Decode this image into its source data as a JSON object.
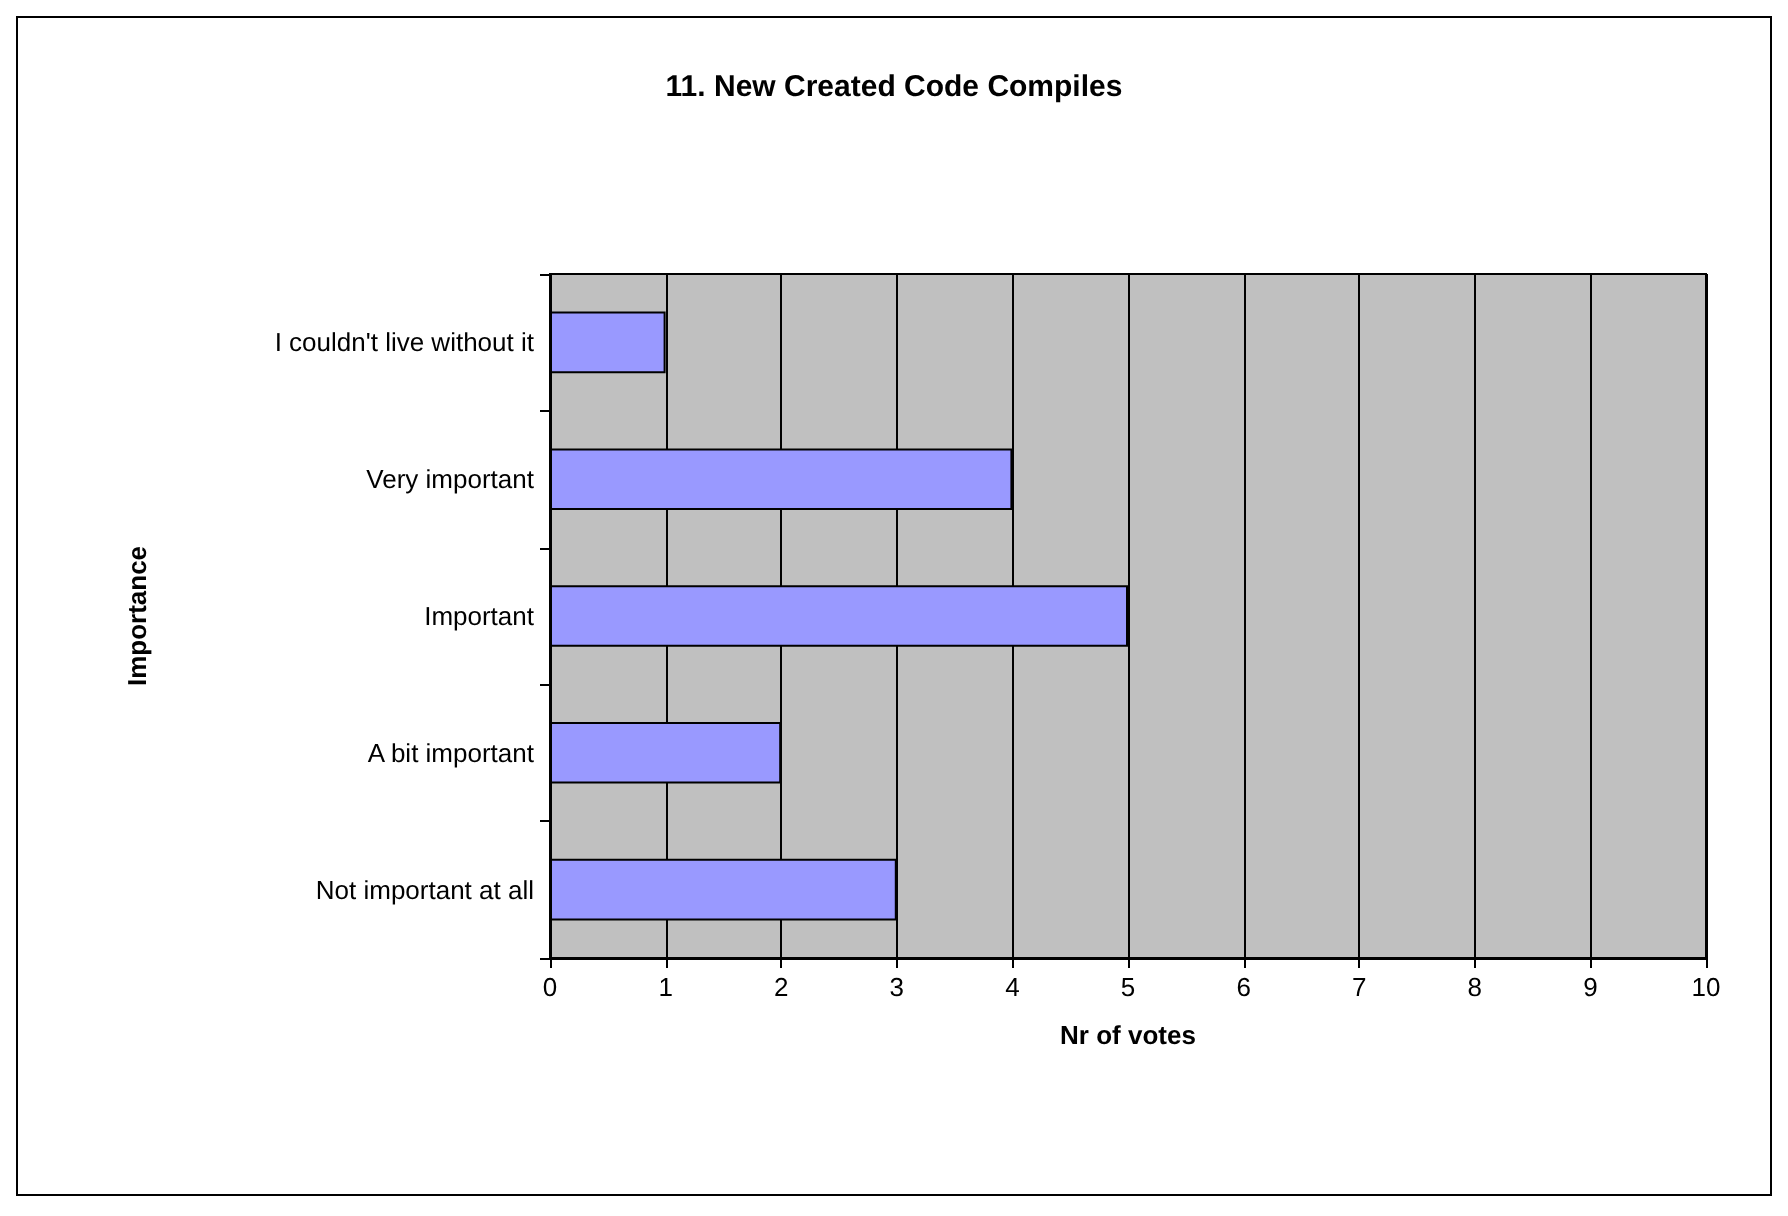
{
  "chart_data": {
    "type": "bar",
    "orientation": "horizontal",
    "title": "11. New Created Code Compiles",
    "xlabel": "Nr of votes",
    "ylabel": "Importance",
    "categories": [
      "I couldn't live without it",
      "Very important",
      "Important",
      "A bit important",
      "Not important at all"
    ],
    "values": [
      1,
      4,
      5,
      2,
      3
    ],
    "color": "#9999ff",
    "xlim": [
      0,
      10
    ],
    "xticks": [
      0,
      1,
      2,
      3,
      4,
      5,
      6,
      7,
      8,
      9,
      10
    ],
    "grid": "x"
  }
}
